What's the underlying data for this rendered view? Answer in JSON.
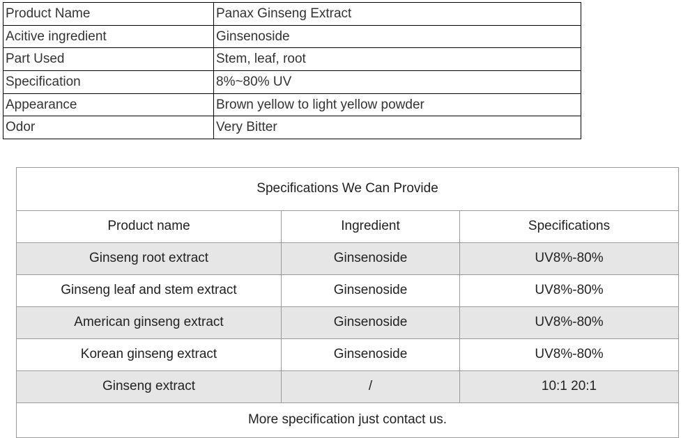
{
  "info_table": {
    "rows": [
      {
        "label": "Product Name",
        "value": "Panax Ginseng Extract"
      },
      {
        "label": "Acitive ingredient",
        "value": "Ginsenoside"
      },
      {
        "label": "Part Used",
        "value": "Stem, leaf, root"
      },
      {
        "label": "Specification",
        "value": "8%~80% UV"
      },
      {
        "label": "Appearance",
        "value": "Brown yellow to light yellow powder"
      },
      {
        "label": "Odor",
        "value": "Very Bitter"
      }
    ]
  },
  "spec_table": {
    "title": "Specifications We Can Provide",
    "title_color": "#1b8a1b",
    "columns": [
      "Product name",
      "Ingredient",
      "Specifications"
    ],
    "rows": [
      {
        "name": "Ginseng root extract",
        "ingredient": "Ginsenoside",
        "spec": "UV8%-80%",
        "alt": true
      },
      {
        "name": "Ginseng leaf and stem extract",
        "ingredient": "Ginsenoside",
        "spec": "UV8%-80%",
        "alt": false
      },
      {
        "name": "American ginseng extract",
        "ingredient": "Ginsenoside",
        "spec": "UV8%-80%",
        "alt": true
      },
      {
        "name": "Korean ginseng extract",
        "ingredient": "Ginsenoside",
        "spec": "UV8%-80%",
        "alt": false
      },
      {
        "name": "Ginseng extract",
        "ingredient": "/",
        "spec": "10:1 20:1",
        "alt": true
      }
    ],
    "footer": "More specification just contact us.",
    "alt_row_bg": "#e6e6e6",
    "border_color": "#999999"
  }
}
